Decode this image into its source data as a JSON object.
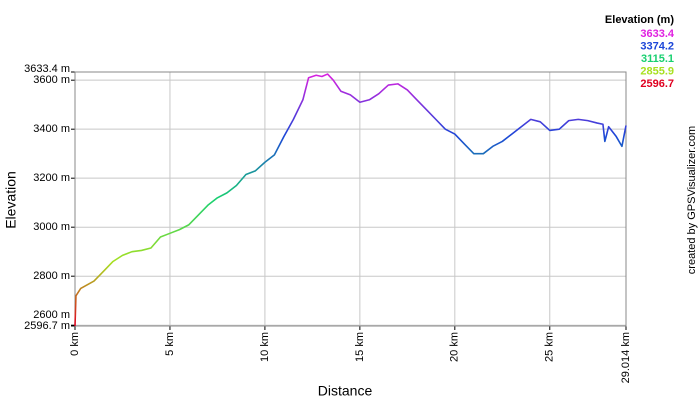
{
  "chart_data": {
    "type": "line",
    "xlabel": "Distance",
    "ylabel": "Elevation",
    "credit": "created by GPSVisualizer.com",
    "legend_title": "Elevation (m)",
    "color_scale": [
      {
        "value": 3633.4,
        "color": "#e020e0"
      },
      {
        "value": 3374.2,
        "color": "#1c46d8"
      },
      {
        "value": 3115.1,
        "color": "#18d070"
      },
      {
        "value": 2855.9,
        "color": "#a8e020"
      },
      {
        "value": 2596.7,
        "color": "#e00020"
      }
    ],
    "xlim": [
      0,
      29.014
    ],
    "ylim": [
      2596.7,
      3633.4
    ],
    "xticks": [
      {
        "value": 0,
        "label": "0 km"
      },
      {
        "value": 5,
        "label": "5 km"
      },
      {
        "value": 10,
        "label": "10 km"
      },
      {
        "value": 15,
        "label": "15 km"
      },
      {
        "value": 20,
        "label": "20 km"
      },
      {
        "value": 25,
        "label": "25 km"
      },
      {
        "value": 29.014,
        "label": "29.014 km"
      }
    ],
    "yticks": [
      {
        "value": 2596.7,
        "label": "2596.7 m"
      },
      {
        "value": 2600,
        "label": "2600 m"
      },
      {
        "value": 2800,
        "label": "2800 m"
      },
      {
        "value": 3000,
        "label": "3000 m"
      },
      {
        "value": 3200,
        "label": "3200 m"
      },
      {
        "value": 3400,
        "label": "3400 m"
      },
      {
        "value": 3600,
        "label": "3600 m"
      },
      {
        "value": 3633.4,
        "label": "3633.4 m"
      }
    ],
    "grid": true,
    "x": [
      0,
      0.05,
      0.3,
      1,
      1.5,
      2,
      2.5,
      3,
      3.5,
      4,
      4.5,
      5,
      5.5,
      6,
      6.5,
      7,
      7.5,
      8,
      8.5,
      9,
      9.5,
      10,
      10.5,
      11,
      11.5,
      12,
      12.3,
      12.7,
      13,
      13.3,
      13.6,
      14,
      14.5,
      15,
      15.5,
      16,
      16.5,
      17,
      17.5,
      18,
      18.5,
      19,
      19.5,
      20,
      20.5,
      21,
      21.5,
      22,
      22.5,
      23,
      23.5,
      24,
      24.5,
      25,
      25.5,
      26,
      26.5,
      27,
      27.5,
      27.8,
      27.9,
      28.1,
      28.5,
      28.8,
      29.014
    ],
    "series": [
      {
        "name": "Elevation",
        "values": [
          2596.7,
          2720,
          2750,
          2780,
          2820,
          2860,
          2885,
          2900,
          2905,
          2915,
          2960,
          2975,
          2990,
          3010,
          3050,
          3090,
          3120,
          3140,
          3170,
          3215,
          3230,
          3265,
          3295,
          3370,
          3440,
          3520,
          3610,
          3620,
          3615,
          3625,
          3600,
          3555,
          3540,
          3510,
          3520,
          3545,
          3580,
          3585,
          3560,
          3520,
          3480,
          3440,
          3400,
          3380,
          3340,
          3300,
          3300,
          3330,
          3350,
          3380,
          3410,
          3440,
          3430,
          3395,
          3400,
          3435,
          3440,
          3435,
          3425,
          3420,
          3350,
          3410,
          3370,
          3330,
          3415
        ]
      }
    ]
  }
}
